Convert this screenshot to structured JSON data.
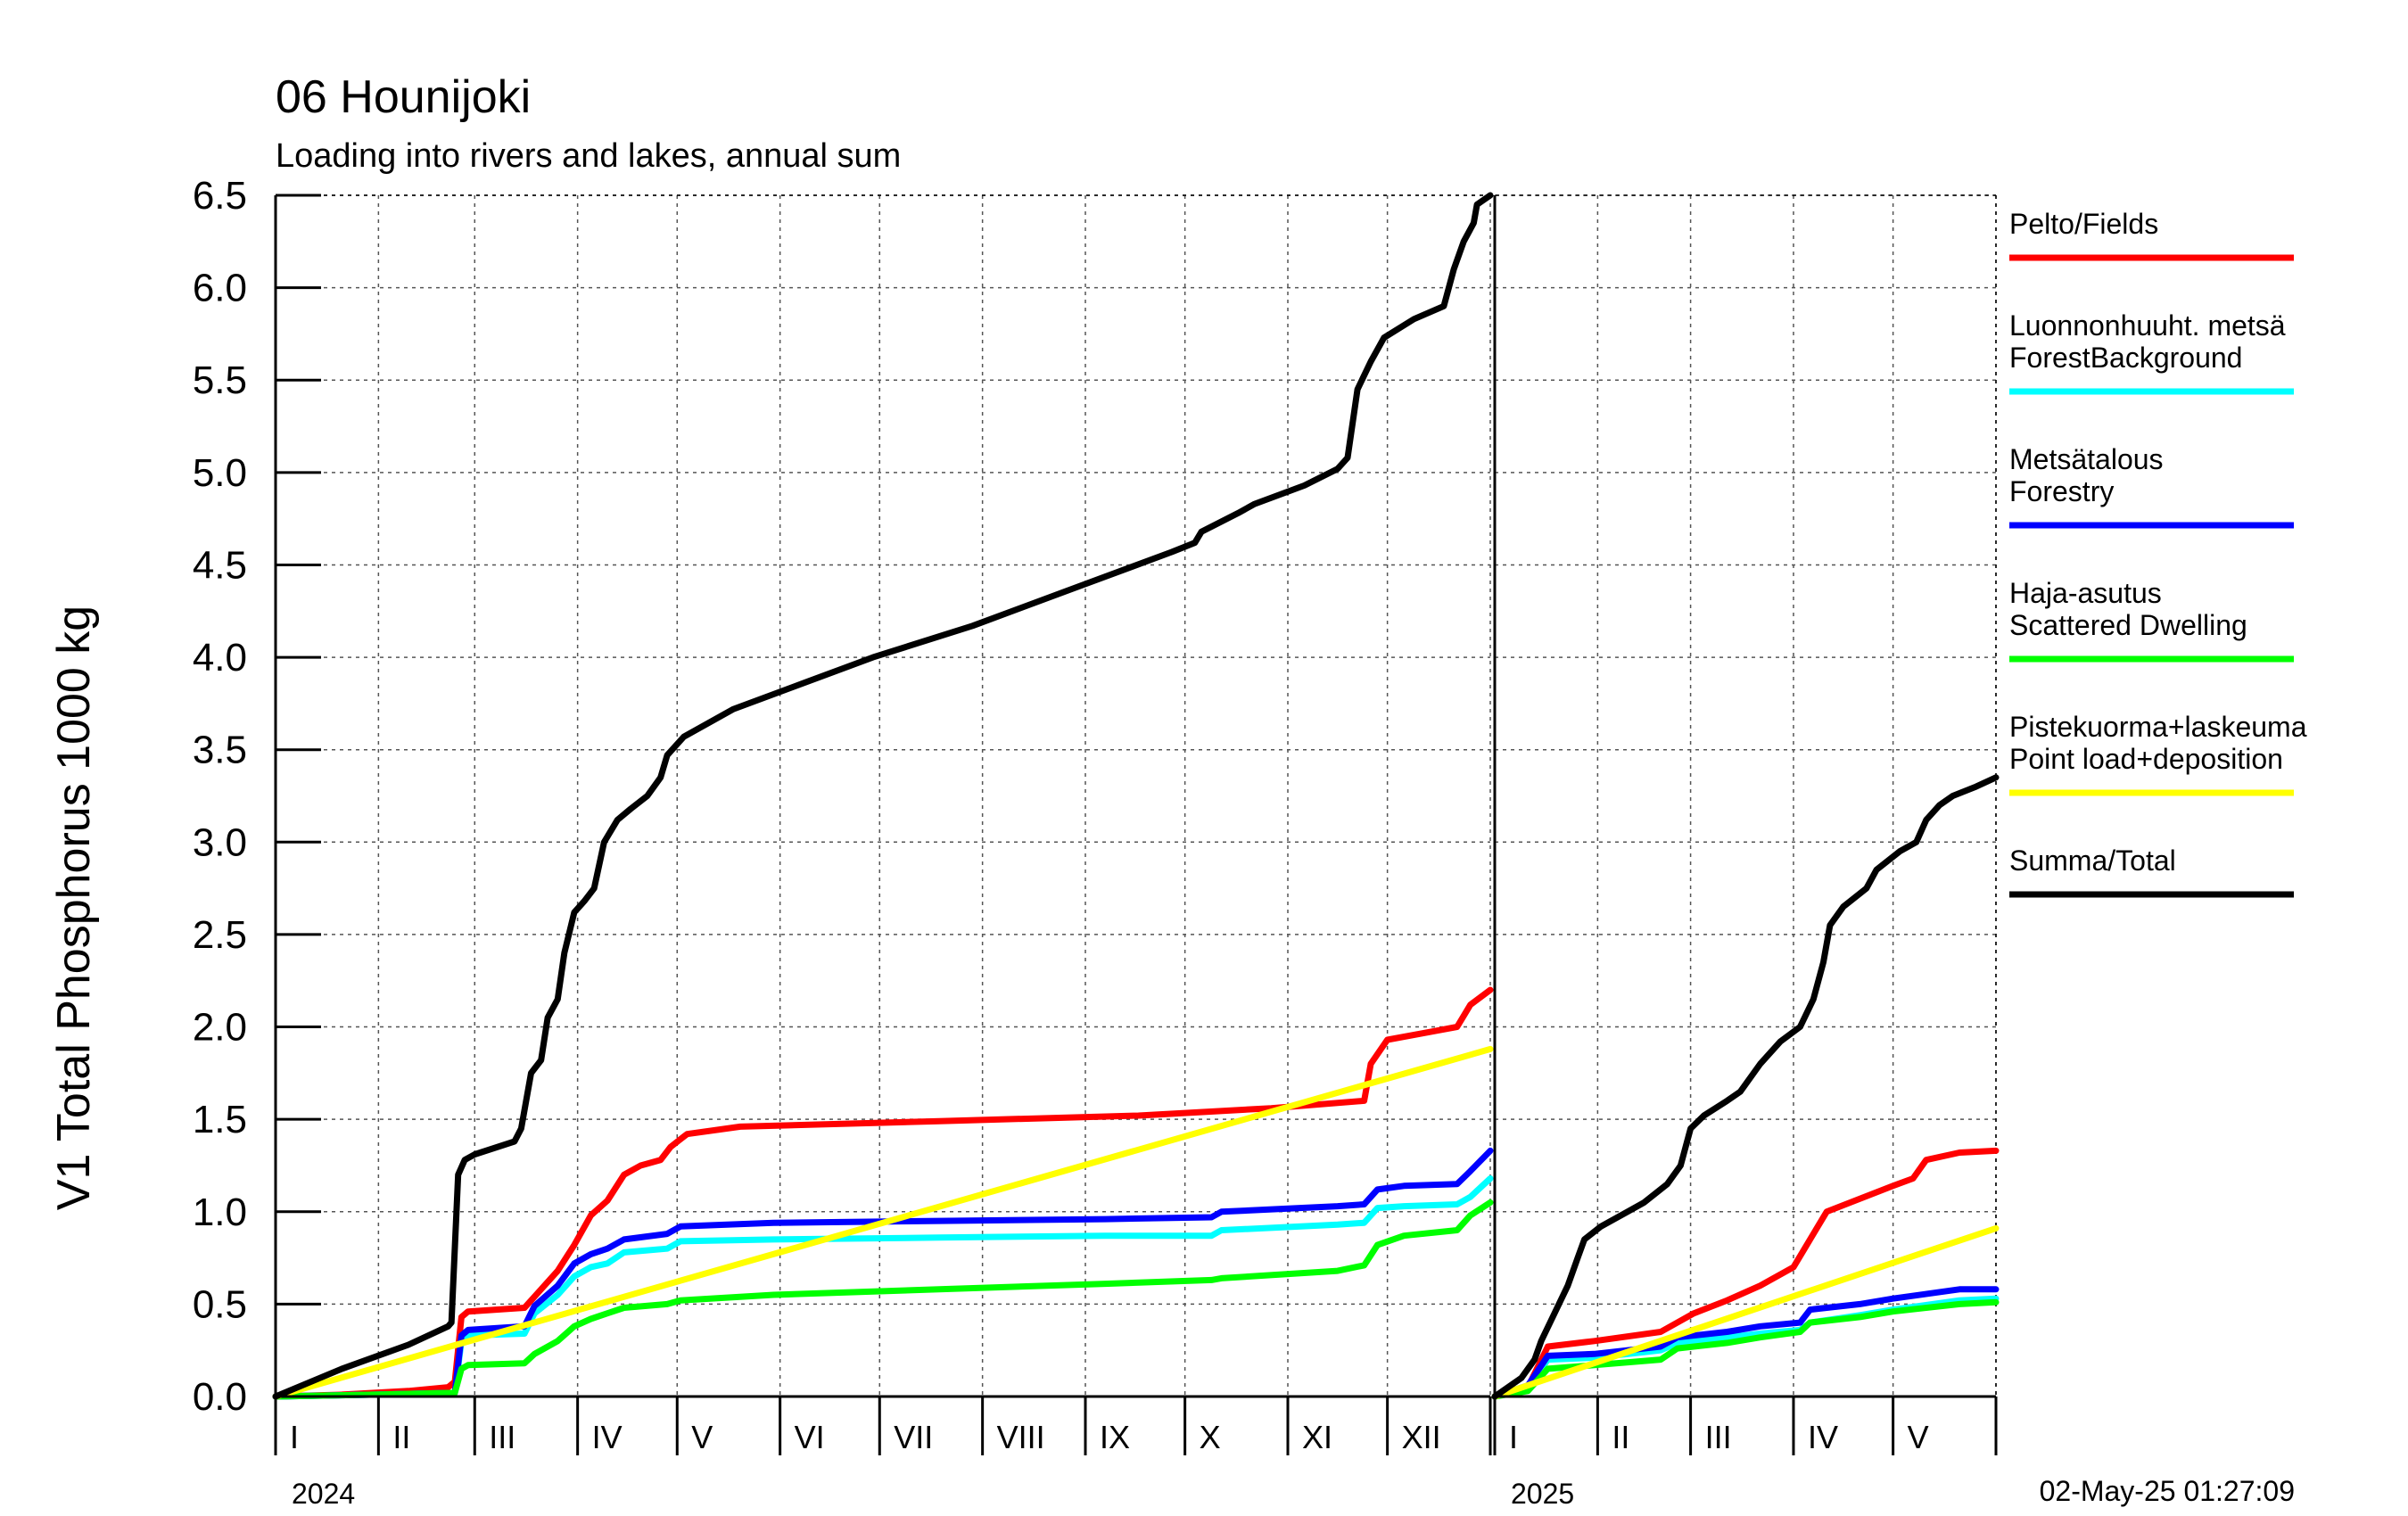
{
  "chart_data": {
    "type": "line",
    "title": "06 Hounijoki",
    "subtitle": "Loading into rivers and lakes, annual sum",
    "ylabel": "V1 Total Phosphorus 1000 kg",
    "ylim": [
      0,
      6.5
    ],
    "yticks": [
      "0.0",
      "0.5",
      "1.0",
      "1.5",
      "2.0",
      "2.5",
      "3.0",
      "3.5",
      "4.0",
      "4.5",
      "5.0",
      "5.5",
      "6.0",
      "6.5"
    ],
    "grid": true,
    "legend_position": "right",
    "timestamp": "02-May-25 01:27:09",
    "x_unit": "day of year",
    "panels": [
      {
        "year": "2024",
        "xlim": [
          0,
          366
        ],
        "month_starts": [
          0,
          31,
          60,
          91,
          121,
          152,
          182,
          213,
          244,
          274,
          305,
          335,
          366
        ],
        "month_labels": [
          "I",
          "II",
          "III",
          "IV",
          "V",
          "VI",
          "VII",
          "VIII",
          "IX",
          "X",
          "XI",
          "XII"
        ]
      },
      {
        "year": "2025",
        "xlim": [
          0,
          151
        ],
        "month_starts": [
          0,
          31,
          59,
          90,
          120,
          151
        ],
        "month_labels": [
          "I",
          "II",
          "III",
          "IV",
          "V"
        ]
      }
    ],
    "series": [
      {
        "name": "Pelto/Fields",
        "color": "#ff0000",
        "data_2024": [
          [
            0,
            0
          ],
          [
            20,
            0.01
          ],
          [
            40,
            0.03
          ],
          [
            52,
            0.05
          ],
          [
            54,
            0.08
          ],
          [
            56,
            0.43
          ],
          [
            58,
            0.46
          ],
          [
            75,
            0.48
          ],
          [
            80,
            0.58
          ],
          [
            85,
            0.68
          ],
          [
            90,
            0.82
          ],
          [
            95,
            0.98
          ],
          [
            100,
            1.06
          ],
          [
            105,
            1.2
          ],
          [
            110,
            1.25
          ],
          [
            116,
            1.28
          ],
          [
            119,
            1.35
          ],
          [
            124,
            1.42
          ],
          [
            140,
            1.46
          ],
          [
            200,
            1.49
          ],
          [
            260,
            1.52
          ],
          [
            300,
            1.56
          ],
          [
            328,
            1.6
          ],
          [
            330,
            1.8
          ],
          [
            335,
            1.93
          ],
          [
            350,
            1.98
          ],
          [
            356,
            2.0
          ],
          [
            360,
            2.12
          ],
          [
            366,
            2.2
          ]
        ],
        "data_2025": [
          [
            0,
            0
          ],
          [
            10,
            0.05
          ],
          [
            16,
            0.27
          ],
          [
            30,
            0.3
          ],
          [
            50,
            0.35
          ],
          [
            60,
            0.45
          ],
          [
            70,
            0.52
          ],
          [
            80,
            0.6
          ],
          [
            90,
            0.7
          ],
          [
            100,
            1.0
          ],
          [
            110,
            1.07
          ],
          [
            120,
            1.14
          ],
          [
            126,
            1.18
          ],
          [
            130,
            1.28
          ],
          [
            140,
            1.32
          ],
          [
            151,
            1.33
          ]
        ]
      },
      {
        "name": "Luonnonhuuht. metsä ForestBackground",
        "color": "#00ffff",
        "data_2024": [
          [
            0,
            0
          ],
          [
            30,
            0.01
          ],
          [
            54,
            0.02
          ],
          [
            56,
            0.3
          ],
          [
            58,
            0.33
          ],
          [
            75,
            0.34
          ],
          [
            78,
            0.45
          ],
          [
            85,
            0.55
          ],
          [
            90,
            0.65
          ],
          [
            95,
            0.7
          ],
          [
            100,
            0.72
          ],
          [
            105,
            0.78
          ],
          [
            118,
            0.8
          ],
          [
            122,
            0.84
          ],
          [
            150,
            0.85
          ],
          [
            200,
            0.86
          ],
          [
            250,
            0.87
          ],
          [
            282,
            0.87
          ],
          [
            285,
            0.9
          ],
          [
            320,
            0.93
          ],
          [
            328,
            0.94
          ],
          [
            332,
            1.02
          ],
          [
            340,
            1.03
          ],
          [
            356,
            1.04
          ],
          [
            360,
            1.08
          ],
          [
            366,
            1.18
          ]
        ],
        "data_2025": [
          [
            0,
            0
          ],
          [
            10,
            0.05
          ],
          [
            16,
            0.2
          ],
          [
            30,
            0.21
          ],
          [
            50,
            0.25
          ],
          [
            55,
            0.29
          ],
          [
            70,
            0.32
          ],
          [
            80,
            0.34
          ],
          [
            92,
            0.36
          ],
          [
            95,
            0.4
          ],
          [
            110,
            0.44
          ],
          [
            120,
            0.47
          ],
          [
            140,
            0.52
          ],
          [
            151,
            0.53
          ]
        ]
      },
      {
        "name": "Metsätalous Forestry",
        "color": "#0000ff",
        "data_2024": [
          [
            0,
            0
          ],
          [
            30,
            0.01
          ],
          [
            54,
            0.02
          ],
          [
            56,
            0.33
          ],
          [
            58,
            0.36
          ],
          [
            75,
            0.38
          ],
          [
            78,
            0.49
          ],
          [
            85,
            0.6
          ],
          [
            90,
            0.72
          ],
          [
            95,
            0.77
          ],
          [
            100,
            0.8
          ],
          [
            105,
            0.85
          ],
          [
            118,
            0.88
          ],
          [
            122,
            0.92
          ],
          [
            150,
            0.94
          ],
          [
            200,
            0.95
          ],
          [
            250,
            0.96
          ],
          [
            282,
            0.97
          ],
          [
            285,
            1.0
          ],
          [
            320,
            1.03
          ],
          [
            328,
            1.04
          ],
          [
            332,
            1.12
          ],
          [
            340,
            1.14
          ],
          [
            356,
            1.15
          ],
          [
            360,
            1.22
          ],
          [
            366,
            1.33
          ]
        ],
        "data_2025": [
          [
            0,
            0
          ],
          [
            10,
            0.06
          ],
          [
            16,
            0.22
          ],
          [
            30,
            0.23
          ],
          [
            50,
            0.27
          ],
          [
            55,
            0.32
          ],
          [
            70,
            0.35
          ],
          [
            80,
            0.38
          ],
          [
            92,
            0.4
          ],
          [
            95,
            0.47
          ],
          [
            110,
            0.5
          ],
          [
            120,
            0.53
          ],
          [
            140,
            0.58
          ],
          [
            151,
            0.58
          ]
        ]
      },
      {
        "name": "Haja-asutus Scattered Dwelling",
        "color": "#00ff00",
        "data_2024": [
          [
            0,
            0
          ],
          [
            30,
            0.01
          ],
          [
            54,
            0.02
          ],
          [
            56,
            0.15
          ],
          [
            58,
            0.17
          ],
          [
            75,
            0.18
          ],
          [
            78,
            0.23
          ],
          [
            85,
            0.3
          ],
          [
            90,
            0.38
          ],
          [
            95,
            0.42
          ],
          [
            100,
            0.45
          ],
          [
            105,
            0.48
          ],
          [
            118,
            0.5
          ],
          [
            122,
            0.52
          ],
          [
            150,
            0.55
          ],
          [
            200,
            0.58
          ],
          [
            250,
            0.61
          ],
          [
            282,
            0.63
          ],
          [
            285,
            0.64
          ],
          [
            320,
            0.68
          ],
          [
            328,
            0.71
          ],
          [
            332,
            0.82
          ],
          [
            340,
            0.87
          ],
          [
            356,
            0.9
          ],
          [
            360,
            0.98
          ],
          [
            366,
            1.05
          ]
        ],
        "data_2025": [
          [
            0,
            0
          ],
          [
            10,
            0.03
          ],
          [
            16,
            0.15
          ],
          [
            30,
            0.17
          ],
          [
            50,
            0.2
          ],
          [
            55,
            0.26
          ],
          [
            70,
            0.29
          ],
          [
            80,
            0.32
          ],
          [
            92,
            0.35
          ],
          [
            95,
            0.4
          ],
          [
            110,
            0.43
          ],
          [
            120,
            0.46
          ],
          [
            140,
            0.5
          ],
          [
            151,
            0.51
          ]
        ]
      },
      {
        "name": "Pistekuorma+laskeuma Point load+deposition",
        "color": "#ffff00",
        "data_2024": [
          [
            0,
            0
          ],
          [
            366,
            1.88
          ]
        ],
        "data_2025": [
          [
            0,
            0
          ],
          [
            151,
            0.91
          ]
        ]
      },
      {
        "name": "Summa/Total",
        "color": "#000000",
        "data_2024": [
          [
            0,
            0
          ],
          [
            20,
            0.15
          ],
          [
            40,
            0.28
          ],
          [
            52,
            0.38
          ],
          [
            53,
            0.4
          ],
          [
            55,
            1.2
          ],
          [
            57,
            1.28
          ],
          [
            60,
            1.31
          ],
          [
            72,
            1.38
          ],
          [
            74,
            1.45
          ],
          [
            77,
            1.75
          ],
          [
            80,
            1.82
          ],
          [
            82,
            2.05
          ],
          [
            85,
            2.15
          ],
          [
            87,
            2.4
          ],
          [
            90,
            2.62
          ],
          [
            93,
            2.68
          ],
          [
            96,
            2.75
          ],
          [
            99,
            3.0
          ],
          [
            103,
            3.12
          ],
          [
            107,
            3.18
          ],
          [
            112,
            3.25
          ],
          [
            116,
            3.35
          ],
          [
            118,
            3.47
          ],
          [
            123,
            3.57
          ],
          [
            138,
            3.72
          ],
          [
            180,
            4.0
          ],
          [
            210,
            4.17
          ],
          [
            240,
            4.37
          ],
          [
            270,
            4.57
          ],
          [
            277,
            4.62
          ],
          [
            279,
            4.68
          ],
          [
            290,
            4.78
          ],
          [
            295,
            4.83
          ],
          [
            310,
            4.93
          ],
          [
            320,
            5.02
          ],
          [
            323,
            5.08
          ],
          [
            326,
            5.45
          ],
          [
            330,
            5.6
          ],
          [
            334,
            5.73
          ],
          [
            343,
            5.83
          ],
          [
            352,
            5.9
          ],
          [
            355,
            6.1
          ],
          [
            358,
            6.25
          ],
          [
            361,
            6.35
          ],
          [
            362,
            6.45
          ],
          [
            366,
            6.5
          ]
        ],
        "data_2025": [
          [
            0,
            0
          ],
          [
            8,
            0.1
          ],
          [
            12,
            0.2
          ],
          [
            14,
            0.3
          ],
          [
            18,
            0.45
          ],
          [
            22,
            0.6
          ],
          [
            25,
            0.75
          ],
          [
            27,
            0.85
          ],
          [
            32,
            0.92
          ],
          [
            40,
            1.0
          ],
          [
            45,
            1.05
          ],
          [
            52,
            1.15
          ],
          [
            56,
            1.25
          ],
          [
            59,
            1.45
          ],
          [
            63,
            1.52
          ],
          [
            70,
            1.6
          ],
          [
            74,
            1.65
          ],
          [
            80,
            1.8
          ],
          [
            86,
            1.92
          ],
          [
            92,
            2.0
          ],
          [
            96,
            2.15
          ],
          [
            99,
            2.35
          ],
          [
            101,
            2.55
          ],
          [
            105,
            2.65
          ],
          [
            112,
            2.75
          ],
          [
            115,
            2.85
          ],
          [
            122,
            2.95
          ],
          [
            127,
            3.0
          ],
          [
            130,
            3.12
          ],
          [
            134,
            3.2
          ],
          [
            138,
            3.25
          ],
          [
            145,
            3.3
          ],
          [
            151,
            3.35
          ]
        ]
      }
    ]
  }
}
